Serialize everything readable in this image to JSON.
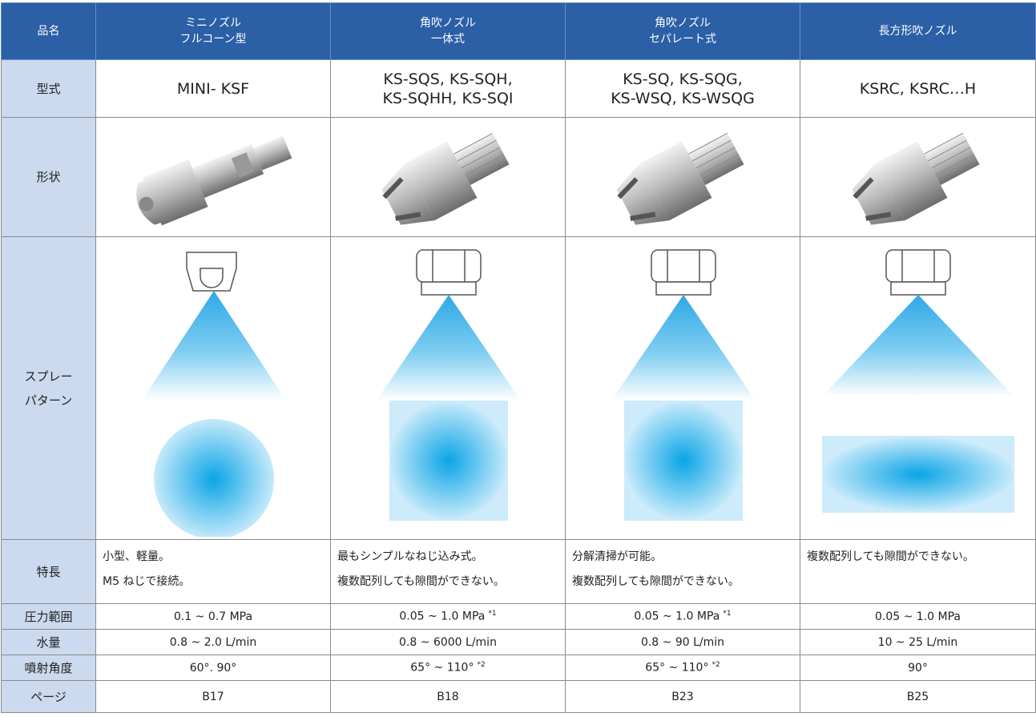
{
  "table": {
    "header": [
      [
        "品名"
      ],
      [
        "ミニノズル",
        "フルコーン型"
      ],
      [
        "角吹ノズル",
        "一体式"
      ],
      [
        "角吹ノズル",
        "セパレート式"
      ],
      [
        "長方形吹ノズル"
      ]
    ],
    "rows": [
      {
        "label": [
          "型式"
        ],
        "cells": [
          {
            "lines": [
              "MINI- KSF"
            ]
          },
          {
            "lines": [
              "KS-SQS, KS-SQH,",
              "KS-SQHH, KS-SQI"
            ]
          },
          {
            "lines": [
              "KS-SQ, KS-SQG,",
              "KS-WSQ, KS-WSQG"
            ]
          },
          {
            "lines": [
              "KSRC, KSRC…H"
            ]
          }
        ]
      },
      {
        "label": [
          "形状"
        ]
      },
      {
        "label": [
          "スプレー",
          "パターン"
        ]
      },
      {
        "label": [
          "特長"
        ],
        "cells": [
          {
            "lines": [
              "小型、軽量。",
              "M5 ねじで接続。"
            ]
          },
          {
            "lines": [
              "最もシンプルなねじ込み式。",
              "複数配列しても隙間ができない。"
            ]
          },
          {
            "lines": [
              "分解清掃が可能。",
              "複数配列しても隙間ができない。"
            ]
          },
          {
            "lines": [
              "複数配列しても隙間ができない。"
            ]
          }
        ]
      },
      {
        "label": [
          "圧力範囲"
        ],
        "cells": [
          {
            "lines": [
              "0.1 ~ 0.7 MPa"
            ]
          },
          {
            "lines": [
              "0.05 ~ 1.0 MPa"
            ],
            "note": "*1"
          },
          {
            "lines": [
              "0.05 ~ 1.0 MPa"
            ],
            "note": "*1"
          },
          {
            "lines": [
              "0.05 ~ 1.0 MPa"
            ]
          }
        ]
      },
      {
        "label": [
          "水量"
        ],
        "cells": [
          {
            "lines": [
              "0.8 ~ 2.0 L/min"
            ]
          },
          {
            "lines": [
              "0.8 ~ 6000 L/min"
            ]
          },
          {
            "lines": [
              "0.8 ~ 90 L/min"
            ]
          },
          {
            "lines": [
              "10 ~ 25 L/min"
            ]
          }
        ]
      },
      {
        "label": [
          "噴射角度"
        ],
        "cells": [
          {
            "lines": [
              "60°. 90°"
            ]
          },
          {
            "lines": [
              "65° ~ 110°"
            ],
            "note": "*2"
          },
          {
            "lines": [
              "65° ~ 110°"
            ],
            "note": "*2"
          },
          {
            "lines": [
              "90°"
            ]
          }
        ]
      },
      {
        "label": [
          "ページ"
        ],
        "cells": [
          {
            "lines": [
              "B17"
            ]
          },
          {
            "lines": [
              "B18"
            ]
          },
          {
            "lines": [
              "B23"
            ]
          },
          {
            "lines": [
              "B25"
            ]
          }
        ]
      }
    ]
  }
}
